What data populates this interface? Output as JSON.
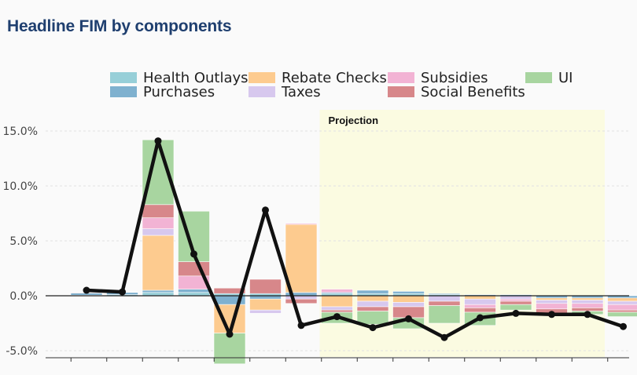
{
  "title": "Headline FIM by components",
  "chart_data": {
    "type": "bar",
    "subtype": "stacked-bar-with-line",
    "title": "Headline FIM by components",
    "xlabel": "",
    "ylabel": "",
    "ylim": [
      -5.5,
      17
    ],
    "y_ticks": [
      -5.0,
      0.0,
      5.0,
      10.0,
      15.0
    ],
    "y_tick_labels": [
      "-5.0%",
      "0.0%",
      "5.0%",
      "10.0%",
      "15.0%"
    ],
    "n_periods": 16,
    "projection": {
      "label": "Projection",
      "start_index": 7,
      "end_index": 14
    },
    "legend_position": "top",
    "series": [
      {
        "name": "Health Outlays",
        "color": "#97cfd8",
        "values": [
          0.05,
          0.1,
          0.3,
          0.3,
          0.2,
          0.2,
          0.0,
          0.2,
          0.2,
          0.2,
          0.1,
          0.0,
          0.0,
          0.0,
          0.0,
          0.0
        ]
      },
      {
        "name": "Purchases",
        "color": "#7fb1cf",
        "values": [
          0.2,
          0.2,
          0.2,
          0.3,
          -0.8,
          -0.3,
          0.3,
          0.1,
          0.3,
          0.2,
          0.1,
          0.1,
          0.1,
          -0.2,
          -0.2,
          -0.2
        ]
      },
      {
        "name": "Rebate Checks",
        "color": "#fdcb8f",
        "values": [
          0.0,
          0.0,
          5.0,
          0.0,
          -2.6,
          -1.0,
          6.2,
          -1.0,
          -0.5,
          -0.6,
          0.0,
          -0.3,
          0.0,
          -0.2,
          -0.2,
          -0.3
        ]
      },
      {
        "name": "Taxes",
        "color": "#d7c8ee",
        "values": [
          0.0,
          0.0,
          0.6,
          0.0,
          0.0,
          -0.3,
          -0.3,
          -0.3,
          -0.5,
          -0.4,
          -0.5,
          -0.5,
          -0.3,
          -0.3,
          -0.3,
          -0.3
        ]
      },
      {
        "name": "Subsidies",
        "color": "#f2b3d4",
        "values": [
          0.0,
          0.0,
          1.0,
          1.2,
          0.0,
          0.0,
          0.1,
          0.3,
          0.0,
          0.0,
          0.0,
          -0.3,
          -0.2,
          -0.5,
          -0.4,
          -0.5
        ]
      },
      {
        "name": "Social Benefits",
        "color": "#d7878a",
        "values": [
          0.05,
          0.0,
          1.2,
          1.3,
          0.5,
          1.3,
          -0.4,
          -0.2,
          -0.4,
          -1.0,
          -0.4,
          -0.4,
          -0.3,
          -0.4,
          -0.3,
          -0.2
        ]
      },
      {
        "name": "UI",
        "color": "#a8d5a0",
        "values": [
          0.0,
          0.0,
          5.9,
          4.6,
          -2.8,
          0.0,
          0.0,
          -1.0,
          -1.2,
          -1.0,
          -1.6,
          -1.2,
          -0.5,
          -0.2,
          -0.3,
          -0.4
        ]
      }
    ],
    "line": {
      "name": "",
      "color": "#111111",
      "values": [
        0.5,
        0.35,
        14.1,
        3.8,
        -3.5,
        7.8,
        -2.7,
        -1.9,
        -2.9,
        -2.1,
        -3.8,
        -2.0,
        -1.6,
        -1.7,
        -1.7,
        -2.8
      ]
    }
  }
}
